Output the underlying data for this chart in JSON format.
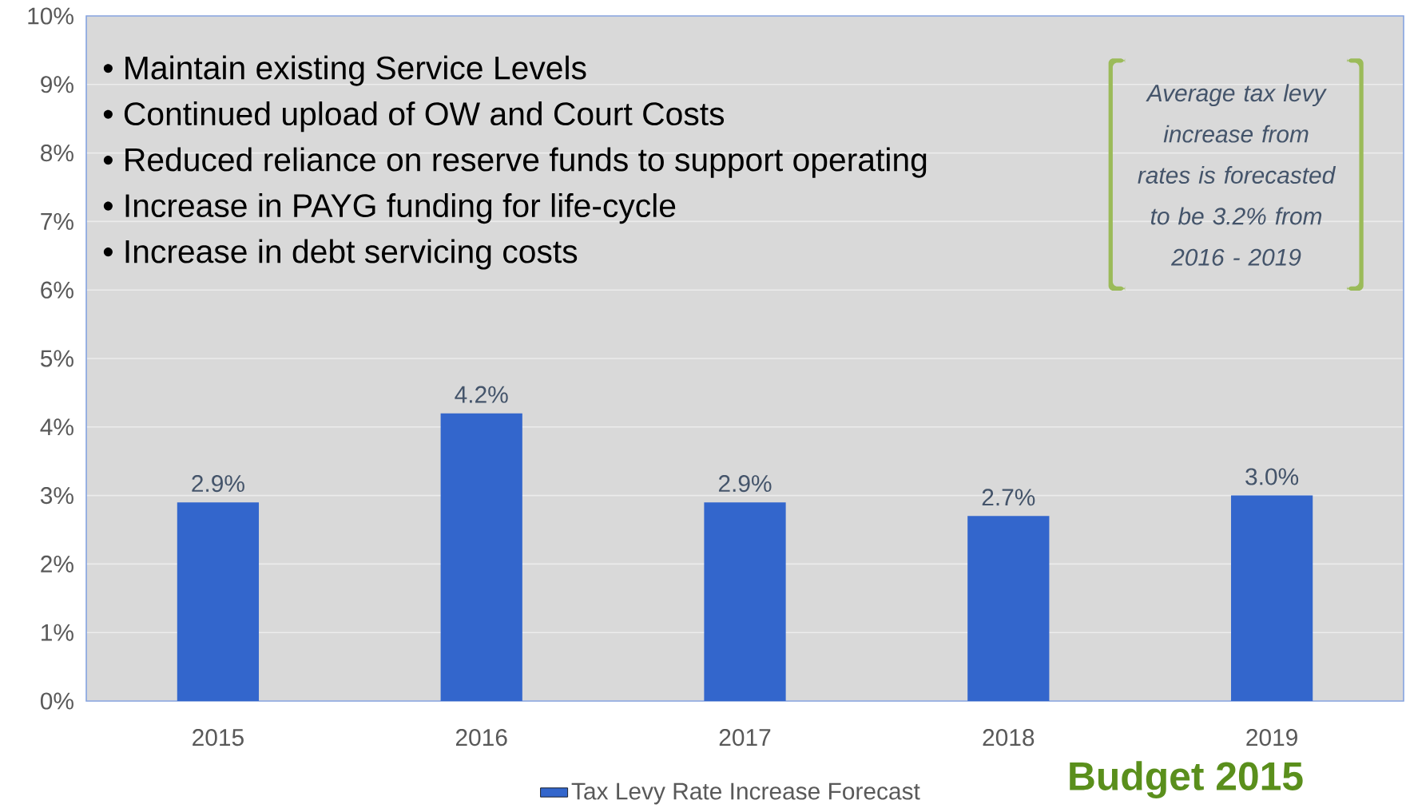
{
  "chart_data": {
    "type": "bar",
    "categories": [
      "2015",
      "2016",
      "2017",
      "2018",
      "2019"
    ],
    "series": [
      {
        "name": "Tax Levy Rate Increase Forecast",
        "color": "#3366cc",
        "values": [
          2.9,
          4.2,
          2.9,
          2.7,
          3.0
        ],
        "value_labels": [
          "2.9%",
          "4.2%",
          "2.9%",
          "2.7%",
          "3.0%"
        ]
      }
    ],
    "ylim": [
      0,
      10
    ],
    "yticks": [
      {
        "value": 0,
        "label": "0%"
      },
      {
        "value": 1,
        "label": "1%"
      },
      {
        "value": 2,
        "label": "2%"
      },
      {
        "value": 3,
        "label": "3%"
      },
      {
        "value": 4,
        "label": "4%"
      },
      {
        "value": 5,
        "label": "5%"
      },
      {
        "value": 6,
        "label": "6%"
      },
      {
        "value": 7,
        "label": "7%"
      },
      {
        "value": 8,
        "label": "8%"
      },
      {
        "value": 9,
        "label": "9%"
      },
      {
        "value": 10,
        "label": "10%"
      }
    ],
    "grid": "y",
    "legend": "bottom",
    "annotations": [
      "•    Maintain existing Service Levels",
      "•    Continued upload of OW and Court Costs",
      "•    Reduced reliance on reserve funds to support operating",
      "•    Increase in PAYG funding for life-cycle",
      "•    Increase in debt servicing costs",
      "Average tax levy increase from rates is forecasted to be 3.2% from 2016 - 2019",
      "Budget 2015"
    ]
  }
}
